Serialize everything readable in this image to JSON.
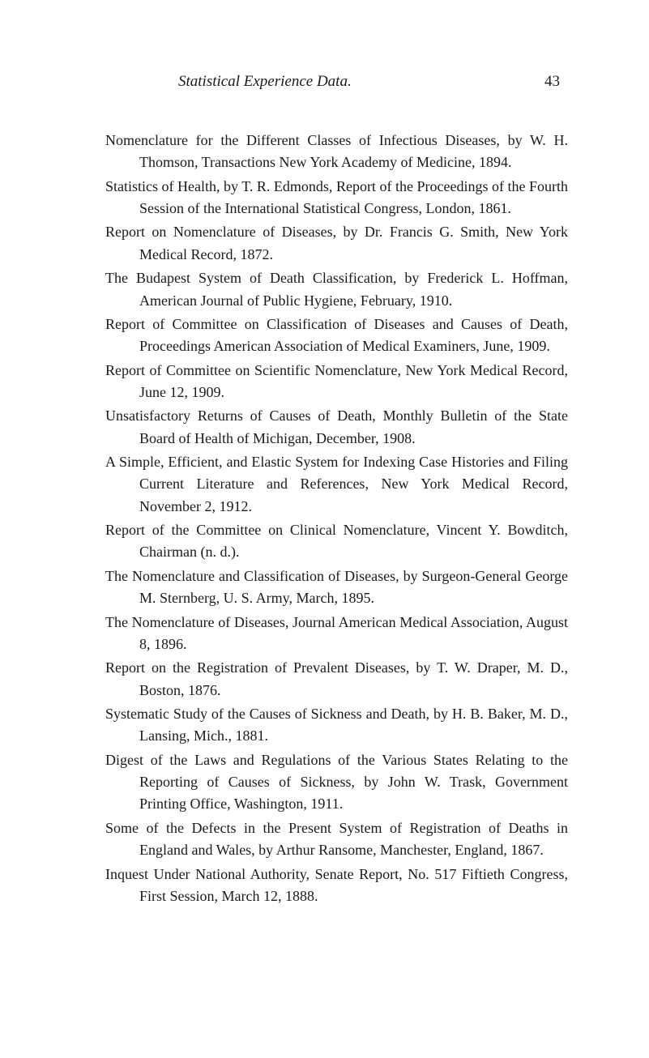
{
  "header": {
    "title": "Statistical Experience Data.",
    "page_number": "43"
  },
  "entries": [
    "Nomenclature for the Different Classes of Infectious Diseases, by W. H. Thomson, Transactions New York Academy of Medicine, 1894.",
    "Statistics of Health, by T. R. Edmonds, Report of the Proceedings of the Fourth Session of the International Statistical Congress, London, 1861.",
    "Report on Nomenclature of Diseases, by Dr. Francis G. Smith, New York Medical Record, 1872.",
    "The Budapest System of Death Classification, by Frederick L. Hoffman, American Journal of Public Hygiene, February, 1910.",
    "Report of Committee on Classification of Diseases and Causes of Death, Proceedings American Association of Medical Examiners, June, 1909.",
    "Report of Committee on Scientific Nomenclature, New York Medical Record, June 12, 1909.",
    "Unsatisfactory Returns of Causes of Death, Monthly Bulletin of the State Board of Health of Michigan, December, 1908.",
    "A Simple, Efficient, and Elastic System for Indexing Case Histories and Filing Current Literature and References, New York Medical Record, November 2, 1912.",
    "Report of the Committee on Clinical Nomenclature, Vincent Y. Bowditch, Chairman (n. d.).",
    "The Nomenclature and Classification of Diseases, by Surgeon-General George M. Sternberg, U. S. Army, March, 1895.",
    "The Nomenclature of Diseases, Journal American Medical Association, August 8, 1896.",
    "Report on the Registration of Prevalent Diseases, by T. W. Draper, M. D., Boston, 1876.",
    "Systematic Study of the Causes of Sickness and Death, by H. B. Baker, M. D., Lansing, Mich., 1881.",
    "Digest of the Laws and Regulations of the Various States Relating to the Reporting of Causes of Sickness, by John W. Trask, Government Printing Office, Washington, 1911.",
    "Some of the Defects in the Present System of Registration of Deaths in England and Wales, by Arthur Ransome, Manchester, England, 1867.",
    "Inquest Under National Authority, Senate Report, No. 517 Fiftieth Congress, First Session, March 12, 1888."
  ]
}
